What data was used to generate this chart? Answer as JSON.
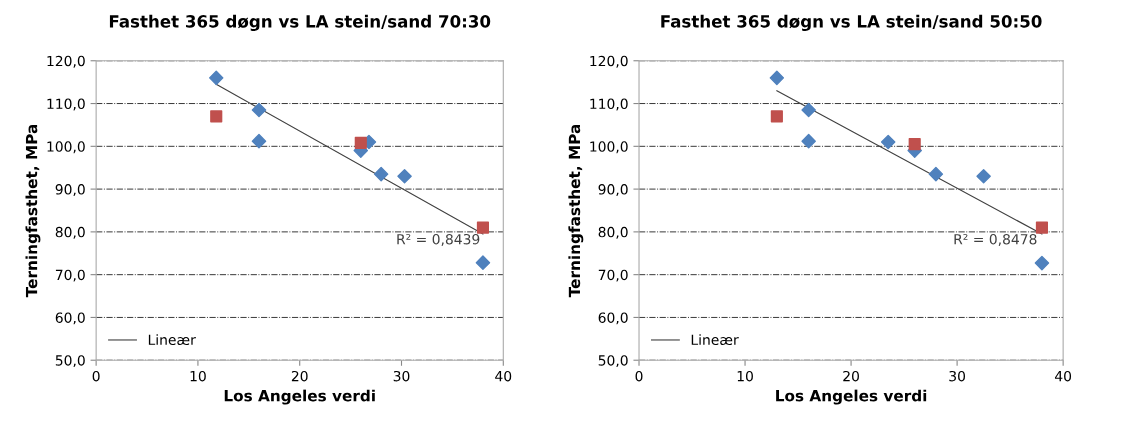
{
  "chart_data": [
    {
      "type": "scatter",
      "title": "Fasthet 365 døgn vs LA stein/sand 70:30",
      "xlabel": "Los Angeles verdi",
      "ylabel": "Terningfasthet, MPa",
      "series": [
        {
          "marker": "diamond",
          "color": "#4f81bd",
          "x": [
            11.8,
            16,
            16,
            26,
            26.8,
            28,
            30.3,
            38
          ],
          "values": [
            116,
            108.5,
            101.2,
            99,
            101,
            93.5,
            93,
            72.8
          ]
        },
        {
          "marker": "square",
          "color": "#c0504d",
          "x": [
            11.8,
            26,
            38
          ],
          "values": [
            107,
            100.8,
            81
          ]
        },
        {
          "type": "line",
          "name": "Lineær",
          "color": "#404040",
          "x": [
            11.8,
            38
          ],
          "values": [
            114.5,
            79.5
          ]
        }
      ],
      "annotations": [
        "R² = 0,8439"
      ],
      "xlim": [
        0,
        40
      ],
      "xticks": [
        0,
        10,
        20,
        30,
        40
      ],
      "ylim": [
        50,
        120
      ],
      "yticks": [
        {
          "value": 50,
          "label": "50,0"
        },
        {
          "value": 60,
          "label": "60,0"
        },
        {
          "value": 70,
          "label": "70,0"
        },
        {
          "value": 80,
          "label": "80,0"
        },
        {
          "value": 90,
          "label": "90,0"
        },
        {
          "value": 100,
          "label": "100,0"
        },
        {
          "value": 110,
          "label": "110,0"
        },
        {
          "value": 120,
          "label": "120,0"
        }
      ],
      "grid": "y",
      "legend": "bottom left"
    },
    {
      "type": "scatter",
      "title": "Fasthet 365 døgn vs LA stein/sand 50:50",
      "xlabel": "Los Angeles verdi",
      "ylabel": "Terningfasthet, MPa",
      "series": [
        {
          "marker": "diamond",
          "color": "#4f81bd",
          "x": [
            13,
            16,
            16,
            23.5,
            26,
            28,
            32.5,
            38
          ],
          "values": [
            116,
            108.5,
            101.2,
            101,
            99,
            93.5,
            93,
            72.7
          ]
        },
        {
          "marker": "square",
          "color": "#c0504d",
          "x": [
            13,
            26,
            38
          ],
          "values": [
            107,
            100.5,
            81
          ]
        },
        {
          "type": "line",
          "name": "Lineær",
          "color": "#404040",
          "x": [
            13,
            38
          ],
          "values": [
            113,
            79.5
          ]
        }
      ],
      "annotations": [
        "R² = 0,8478"
      ],
      "xlim": [
        0,
        40
      ],
      "xticks": [
        0,
        10,
        20,
        30,
        40
      ],
      "ylim": [
        50,
        120
      ],
      "yticks": [
        {
          "value": 50,
          "label": "50,0"
        },
        {
          "value": 60,
          "label": "60,0"
        },
        {
          "value": 70,
          "label": "70,0"
        },
        {
          "value": 80,
          "label": "80,0"
        },
        {
          "value": 90,
          "label": "90,0"
        },
        {
          "value": 100,
          "label": "100,0"
        },
        {
          "value": 110,
          "label": "110,0"
        },
        {
          "value": 120,
          "label": "120,0"
        }
      ],
      "grid": "y",
      "legend": "bottom left"
    }
  ]
}
